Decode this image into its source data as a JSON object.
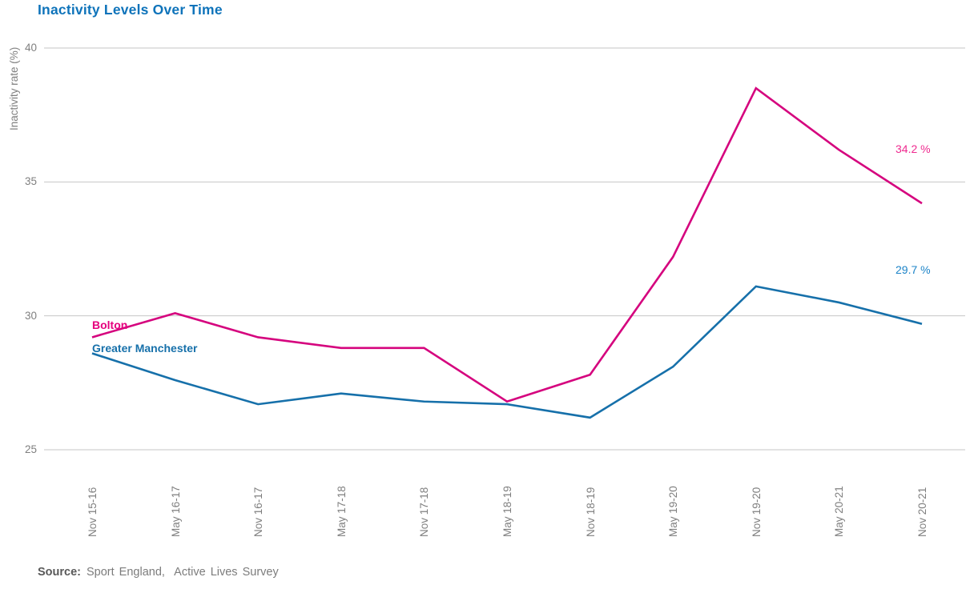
{
  "chart_data": {
    "type": "line",
    "title": "Inactivity Levels Over Time",
    "ylabel": "Inactivity rate (%)",
    "xlabel": "",
    "ylim": [
      25,
      40
    ],
    "yticks": [
      40,
      35,
      30,
      25
    ],
    "grid": "horizontal gridlines only, no axis lines, no markers",
    "legend_position": "inline labels at line start, value labels at line end",
    "categories": [
      "Nov 15-16",
      "May 16-17",
      "Nov 16-17",
      "May 17-18",
      "Nov 17-18",
      "May 18-19",
      "Nov 18-19",
      "May 19-20",
      "Nov 19-20",
      "May 20-21",
      "Nov 20-21"
    ],
    "series": [
      {
        "name": "Bolton",
        "color": "#d5047e",
        "name_label_color": "#e5007e",
        "end_label": "34.2 %",
        "end_label_color": "#ef2a8f",
        "values": [
          29.2,
          30.1,
          29.2,
          28.8,
          28.8,
          26.8,
          27.8,
          32.2,
          38.5,
          36.2,
          34.2
        ]
      },
      {
        "name": "Greater Manchester",
        "color": "#1670aa",
        "name_label_color": "#1670aa",
        "end_label": "29.7 %",
        "end_label_color": "#1d84c8",
        "values": [
          28.6,
          27.6,
          26.7,
          27.1,
          26.8,
          26.7,
          26.2,
          28.1,
          31.1,
          30.5,
          29.7
        ]
      }
    ]
  },
  "source": {
    "label": "Source:",
    "text": "Sport England,  Active Lives Survey"
  },
  "styles": {
    "title_color": "#0e73ba",
    "tick_color": "#7f7f7f",
    "axis_label_color": "#808080",
    "gridline_color": "#c6c6c6",
    "source_label_color": "#595959",
    "source_text_color": "#7c7c7c"
  }
}
